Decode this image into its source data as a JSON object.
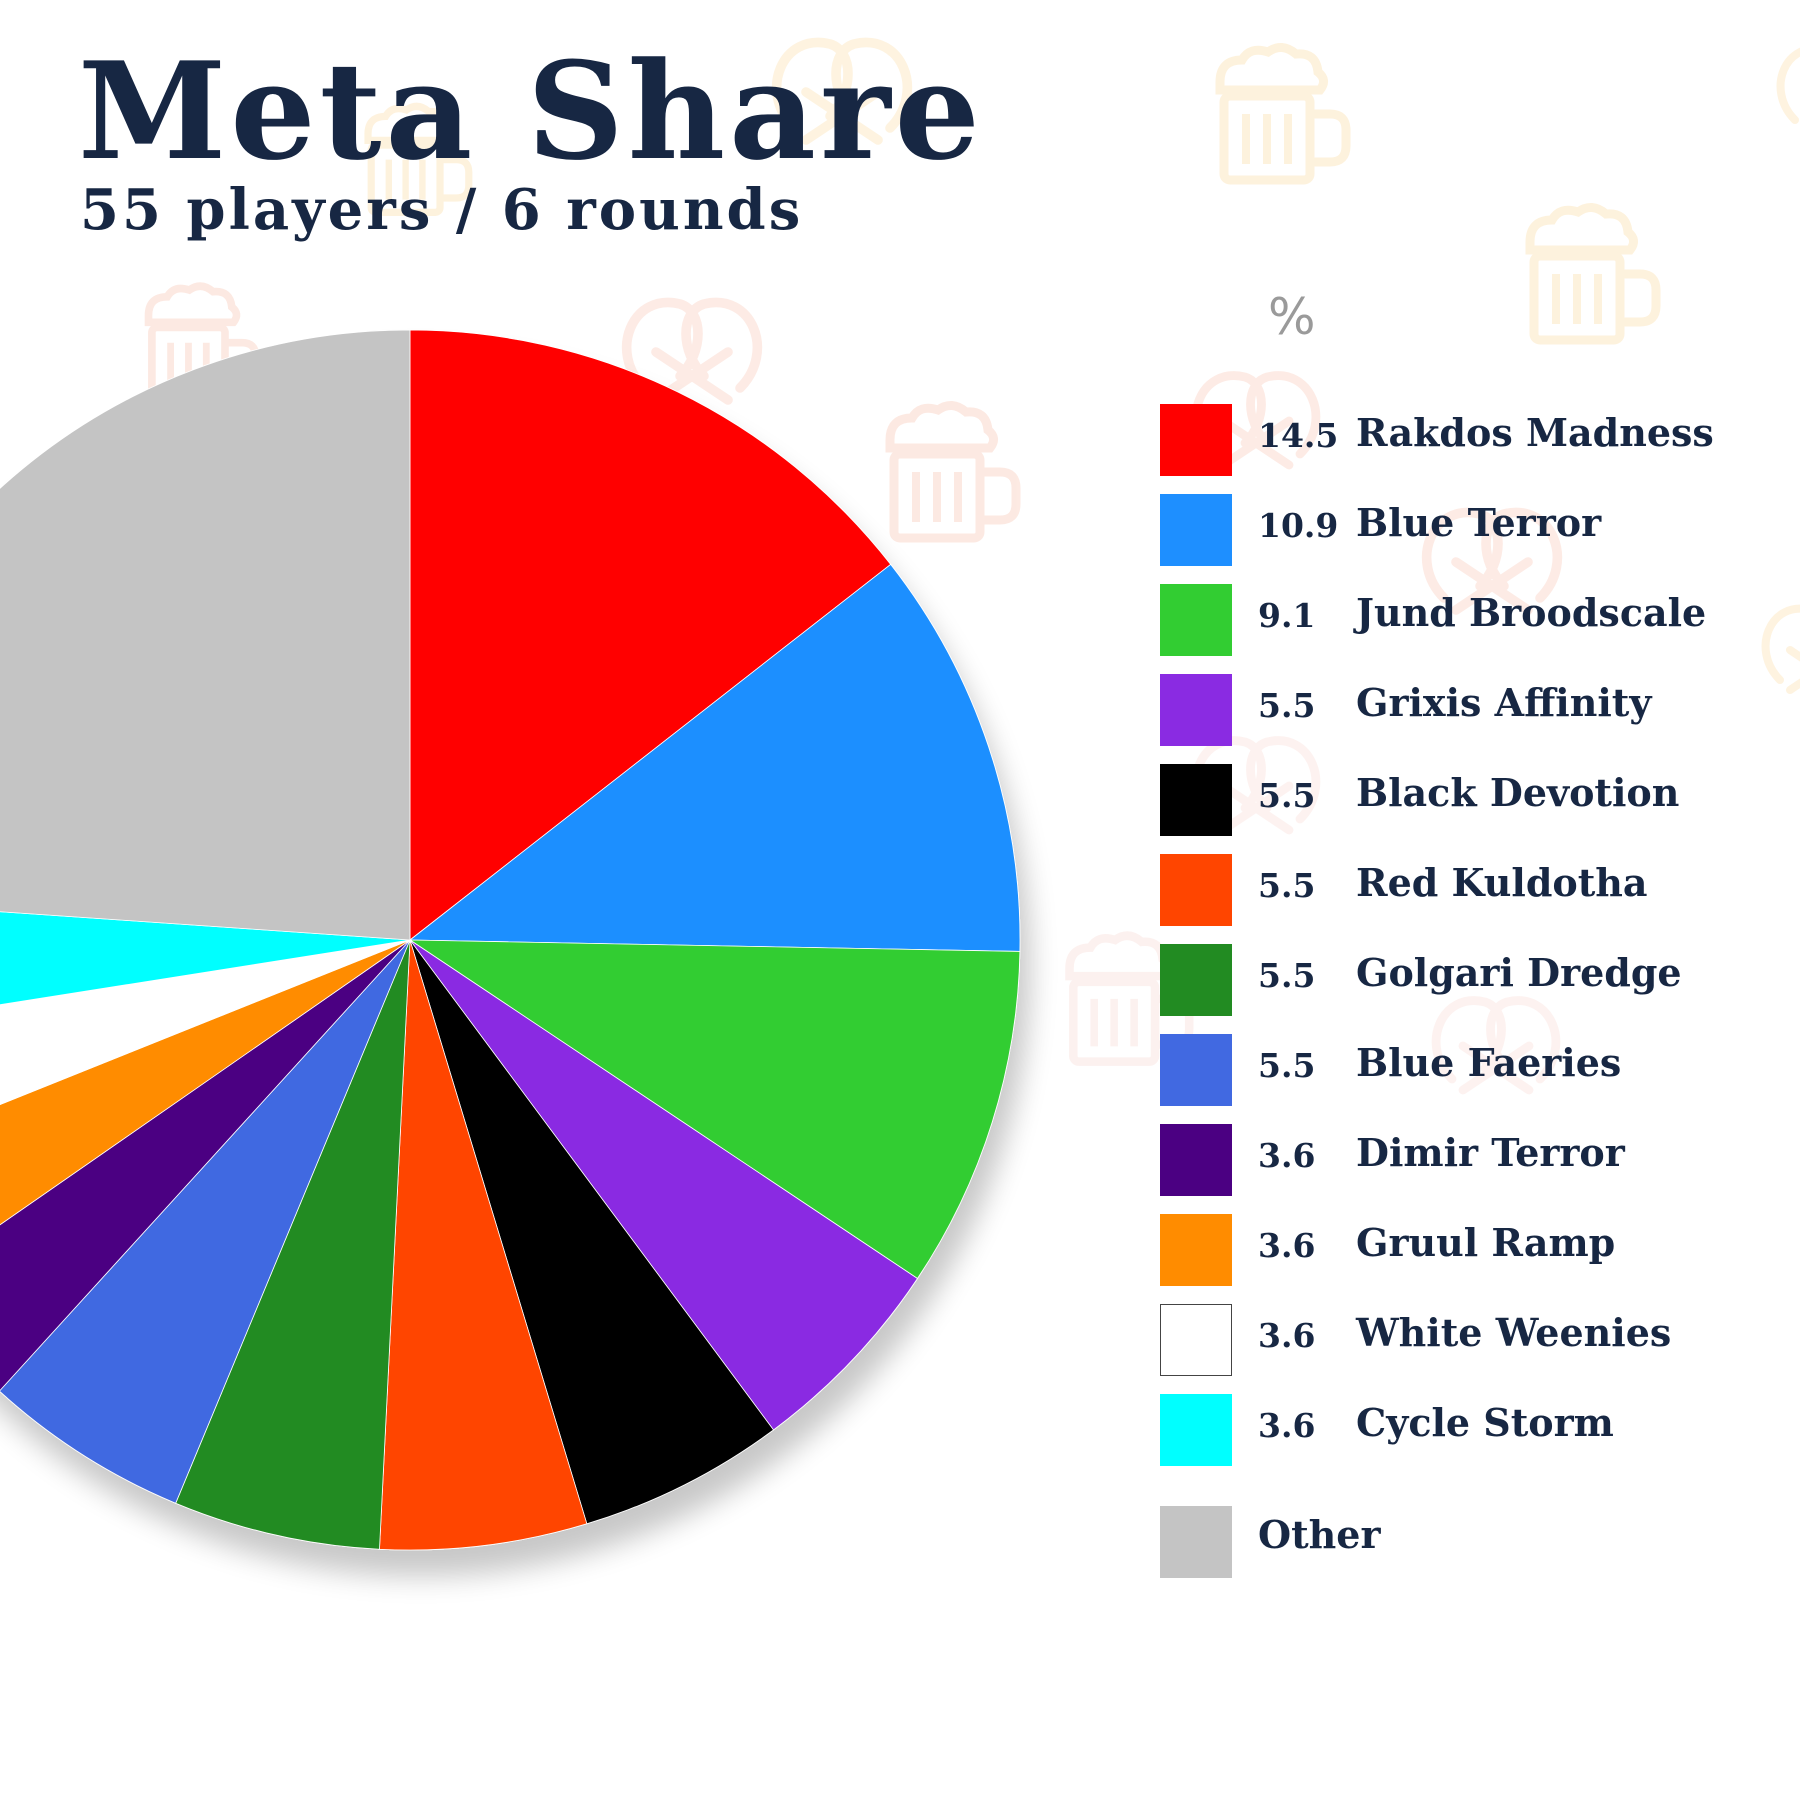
{
  "header": {
    "title": "Meta Share",
    "subtitle": "55 players / 6 rounds"
  },
  "legend": {
    "value_header": "%"
  },
  "chart_data": {
    "type": "pie",
    "title": "Meta Share",
    "subtitle": "55 players / 6 rounds",
    "value_unit": "%",
    "start_angle": "12 o'clock",
    "direction": "clockwise",
    "legend_placement": "right",
    "slices": [
      {
        "label": "Rakdos Madness",
        "value": 14.5,
        "value_label": "14.5",
        "color": "#ff0000"
      },
      {
        "label": "Blue Terror",
        "value": 10.9,
        "value_label": "10.9",
        "color": "#1e8fff"
      },
      {
        "label": "Jund Broodscale",
        "value": 9.1,
        "value_label": "9.1",
        "color": "#32cd32"
      },
      {
        "label": "Grixis Affinity",
        "value": 5.5,
        "value_label": "5.5",
        "color": "#8a2be2"
      },
      {
        "label": "Black Devotion",
        "value": 5.5,
        "value_label": "5.5",
        "color": "#000000"
      },
      {
        "label": "Red Kuldotha",
        "value": 5.5,
        "value_label": "5.5",
        "color": "#ff4500"
      },
      {
        "label": "Golgari Dredge",
        "value": 5.5,
        "value_label": "5.5",
        "color": "#228b22"
      },
      {
        "label": "Blue Faeries",
        "value": 5.5,
        "value_label": "5.5",
        "color": "#4169e1"
      },
      {
        "label": "Dimir Terror",
        "value": 3.6,
        "value_label": "3.6",
        "color": "#4b0082"
      },
      {
        "label": "Gruul Ramp",
        "value": 3.6,
        "value_label": "3.6",
        "color": "#ff8c00"
      },
      {
        "label": "White Weenies",
        "value": 3.6,
        "value_label": "3.6",
        "color": "#ffffff"
      },
      {
        "label": "Cycle Storm",
        "value": 3.6,
        "value_label": "3.6",
        "color": "#00ffff"
      },
      {
        "label": "Other",
        "value": 24.0,
        "value_label": "",
        "color": "#c4c4c4"
      }
    ]
  }
}
